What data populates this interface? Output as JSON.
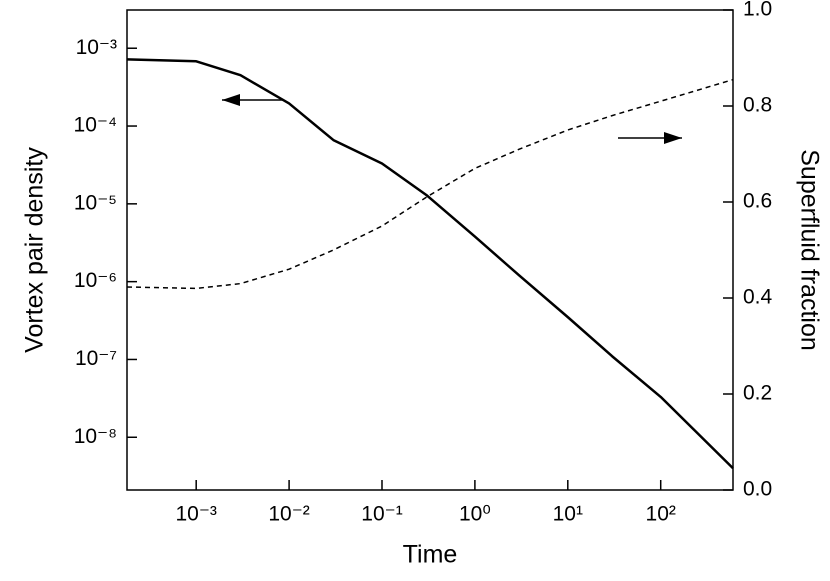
{
  "chart_data": {
    "type": "line",
    "x_label": "Time",
    "y_label": "Vortex pair density",
    "y2_label": "Superfluid fraction",
    "x": [
      0.00018,
      0.001,
      0.003,
      0.01,
      0.03,
      0.1,
      0.3,
      1,
      3,
      10,
      30,
      100,
      600
    ],
    "series": [
      {
        "name": "Vortex pair density",
        "color": "#000000",
        "style": "solid",
        "values": [
          0.00072,
          0.00068,
          0.00045,
          0.000195,
          6.6e-05,
          3.3e-05,
          1.3e-05,
          3.8e-06,
          1.2e-06,
          3.5e-07,
          1.1e-07,
          3.3e-08,
          4e-09
        ]
      },
      {
        "name": "Superfluid fraction",
        "color": "#000000",
        "style": "dashed",
        "axis": "y2",
        "values": [
          0.423,
          0.42,
          0.43,
          0.46,
          0.5,
          0.55,
          0.61,
          0.67,
          0.71,
          0.75,
          0.78,
          0.81,
          0.855
        ]
      }
    ],
    "xlog": true,
    "ylog": true,
    "xlim": [
      0.00018,
      600
    ],
    "ylim": [
      2.1e-09,
      0.0031
    ],
    "y2lim": [
      0,
      1
    ],
    "xticks": [
      {
        "value": 0.001,
        "label": "10⁻³"
      },
      {
        "value": 0.01,
        "label": "10⁻²"
      },
      {
        "value": 0.1,
        "label": "10⁻¹"
      },
      {
        "value": 1,
        "label": "10⁰"
      },
      {
        "value": 10,
        "label": "10¹"
      },
      {
        "value": 100,
        "label": "10²"
      }
    ],
    "yticks": [
      {
        "value": 1e-08,
        "label": "10⁻⁸"
      },
      {
        "value": 1e-07,
        "label": "10⁻⁷"
      },
      {
        "value": 1e-06,
        "label": "10⁻⁶"
      },
      {
        "value": 1e-05,
        "label": "10⁻⁵"
      },
      {
        "value": 0.0001,
        "label": "10⁻⁴"
      },
      {
        "value": 0.001,
        "label": "10⁻³"
      }
    ],
    "y2ticks": [
      {
        "value": 0,
        "label": "0.0"
      },
      0.2,
      0.4,
      0.6,
      0.8,
      {
        "value": 1,
        "label": "1.0"
      }
    ],
    "grid": false
  }
}
